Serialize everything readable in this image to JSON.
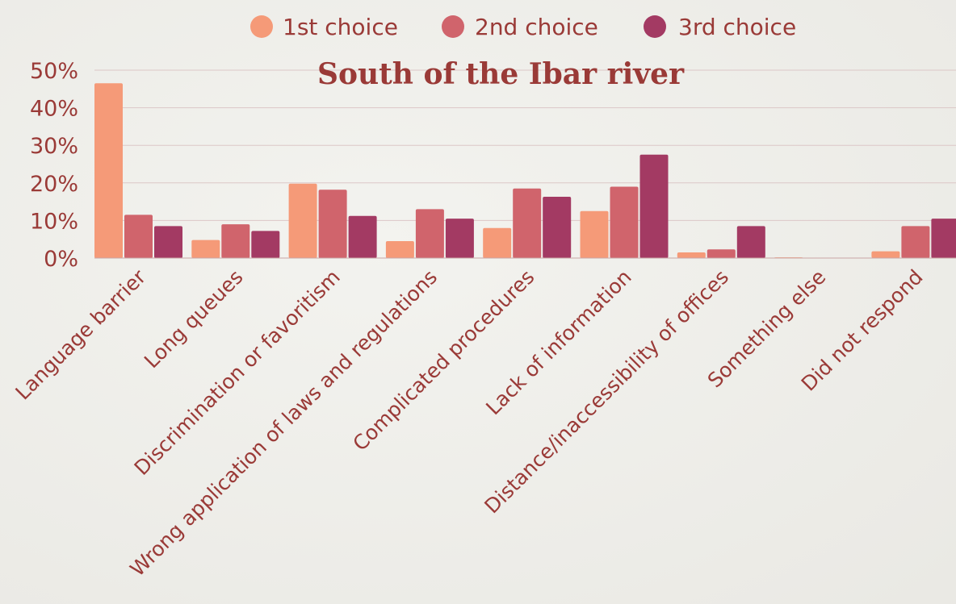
{
  "chart_data": {
    "type": "bar",
    "title": "South of the Ibar river",
    "xlabel": "",
    "ylabel": "",
    "ylim": [
      0,
      50
    ],
    "yticks": [
      "0%",
      "10%",
      "20%",
      "30%",
      "40%",
      "50%"
    ],
    "grid": true,
    "legend_position": "top",
    "categories": [
      "Language barrier",
      "Long queues",
      "Discrimination or favoritism",
      "Wrong application of laws and regulations",
      "Complicated procedures",
      "Lack of information",
      "Distance/inaccessibility of offices",
      "Something else",
      "Did not respond"
    ],
    "series": [
      {
        "name": "1st choice",
        "color": "#f59a78",
        "values": [
          46.5,
          4.8,
          19.8,
          4.5,
          8.0,
          12.5,
          1.5,
          0.2,
          1.8
        ]
      },
      {
        "name": "2nd choice",
        "color": "#d0646c",
        "values": [
          11.5,
          9.0,
          18.2,
          13.0,
          18.5,
          19.0,
          2.3,
          0,
          8.5
        ]
      },
      {
        "name": "3rd choice",
        "color": "#a33a63",
        "values": [
          8.5,
          7.2,
          11.2,
          10.5,
          16.3,
          27.5,
          8.5,
          0,
          10.5
        ]
      }
    ]
  }
}
